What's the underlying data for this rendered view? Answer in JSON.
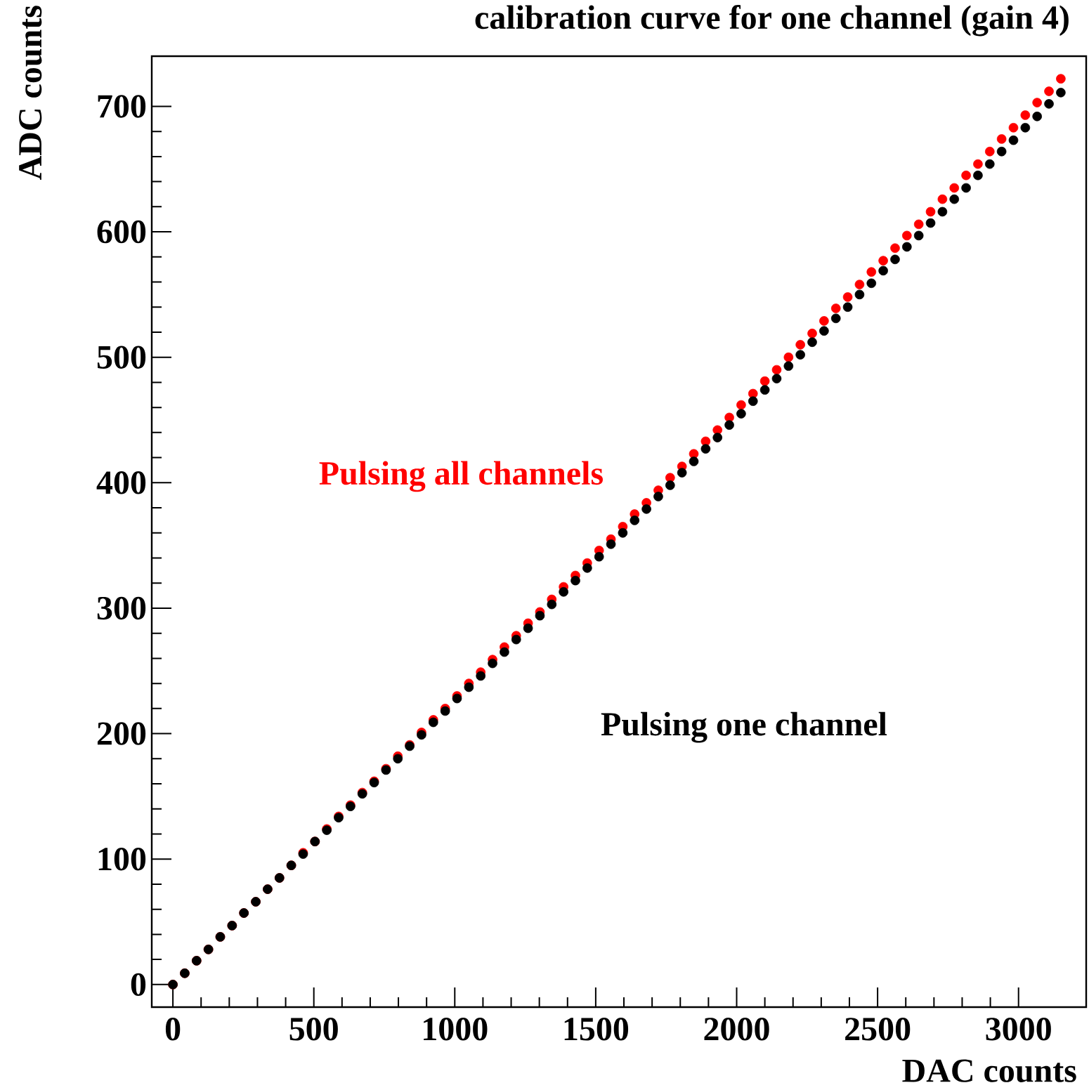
{
  "chart_data": {
    "type": "scatter",
    "title": "calibration curve for one channel (gain 4)",
    "xlabel": "DAC counts",
    "ylabel": "ADC counts",
    "x": [
      0,
      42,
      84,
      126,
      168,
      210,
      252,
      294,
      336,
      378,
      420,
      462,
      504,
      546,
      588,
      630,
      672,
      714,
      756,
      798,
      840,
      882,
      924,
      966,
      1008,
      1050,
      1092,
      1134,
      1176,
      1218,
      1260,
      1302,
      1344,
      1386,
      1428,
      1470,
      1512,
      1554,
      1596,
      1638,
      1680,
      1722,
      1764,
      1806,
      1848,
      1890,
      1932,
      1974,
      2016,
      2058,
      2100,
      2142,
      2184,
      2226,
      2268,
      2310,
      2352,
      2394,
      2436,
      2478,
      2520,
      2562,
      2604,
      2646,
      2688,
      2730,
      2772,
      2814,
      2856,
      2898,
      2940,
      2982,
      3024,
      3066,
      3108,
      3150
    ],
    "series": [
      {
        "name": "Pulsing all channels",
        "color": "#ff0000",
        "values": [
          0,
          9,
          19,
          28,
          38,
          47,
          57,
          66,
          76,
          85,
          95,
          105,
          114,
          124,
          134,
          143,
          153,
          162,
          172,
          182,
          191,
          201,
          211,
          220,
          230,
          240,
          249,
          259,
          269,
          278,
          288,
          297,
          307,
          317,
          326,
          336,
          346,
          355,
          365,
          375,
          384,
          394,
          404,
          413,
          423,
          433,
          442,
          452,
          462,
          471,
          481,
          490,
          500,
          510,
          519,
          529,
          539,
          548,
          558,
          568,
          577,
          587,
          597,
          606,
          616,
          626,
          635,
          645,
          654,
          664,
          674,
          683,
          693,
          703,
          712,
          722
        ]
      },
      {
        "name": "Pulsing one channel",
        "color": "#000000",
        "values": [
          0,
          9,
          19,
          28,
          38,
          47,
          57,
          66,
          76,
          85,
          95,
          104,
          114,
          123,
          133,
          142,
          152,
          161,
          171,
          180,
          190,
          199,
          209,
          218,
          228,
          237,
          246,
          256,
          265,
          275,
          284,
          294,
          303,
          313,
          322,
          332,
          341,
          351,
          360,
          370,
          379,
          389,
          398,
          408,
          417,
          427,
          436,
          446,
          455,
          465,
          474,
          483,
          493,
          502,
          512,
          521,
          531,
          540,
          550,
          559,
          569,
          578,
          588,
          597,
          607,
          616,
          626,
          635,
          645,
          654,
          664,
          673,
          683,
          692,
          702,
          711
        ]
      }
    ],
    "xlim": [
      -75,
      3240
    ],
    "ylim": [
      -18,
      740
    ],
    "xticks": [
      0,
      500,
      1000,
      1500,
      2000,
      2500,
      3000
    ],
    "yticks": [
      0,
      100,
      200,
      300,
      400,
      500,
      600,
      700
    ],
    "marker": "circle",
    "legend": false,
    "grid": false
  }
}
